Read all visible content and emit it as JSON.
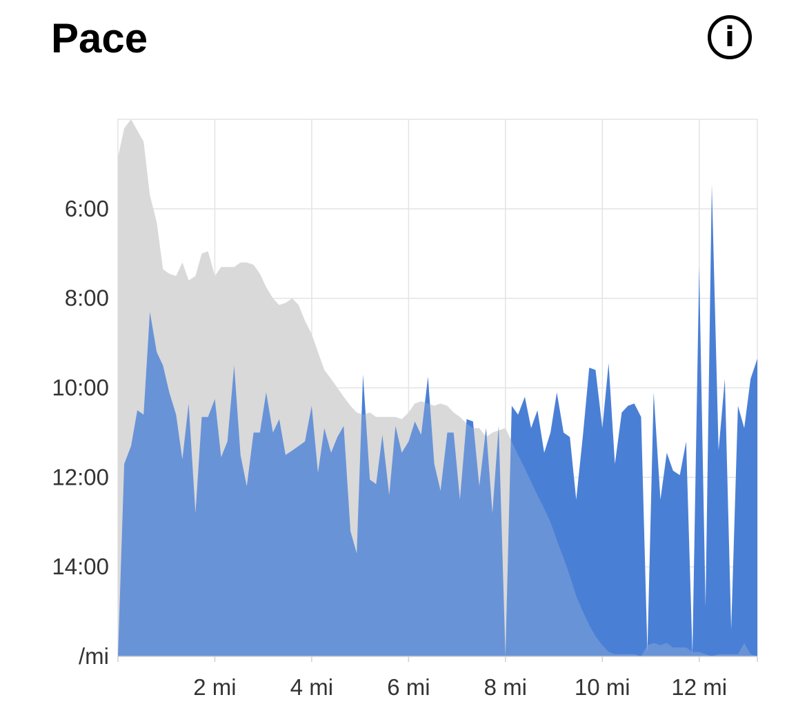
{
  "header": {
    "title": "Pace",
    "info_icon": "info-icon"
  },
  "chart_data": {
    "type": "area",
    "title": "Pace",
    "xlabel": "",
    "ylabel": "/mi",
    "y_unit": "/mi",
    "x_unit": "mi",
    "xlim": [
      0,
      13.2
    ],
    "ylim_min_per_mi": [
      4,
      16
    ],
    "y_inverted": true,
    "grid": true,
    "x_ticks": [
      {
        "value": 2,
        "label": "2 mi"
      },
      {
        "value": 4,
        "label": "4 mi"
      },
      {
        "value": 6,
        "label": "6 mi"
      },
      {
        "value": 8,
        "label": "8 mi"
      },
      {
        "value": 10,
        "label": "10 mi"
      },
      {
        "value": 12,
        "label": "12 mi"
      }
    ],
    "y_ticks": [
      {
        "value": 6,
        "label": "6:00"
      },
      {
        "value": 8,
        "label": "8:00"
      },
      {
        "value": 10,
        "label": "10:00"
      },
      {
        "value": 12,
        "label": "12:00"
      },
      {
        "value": 14,
        "label": "14:00"
      },
      {
        "value": 16,
        "label": "/mi"
      }
    ],
    "colors": {
      "pace": "#4a7fd6",
      "overlay": "#d9d9d9",
      "grid": "#e3e3e3"
    },
    "series": [
      {
        "values": [
          [
            0,
            16
          ],
          [
            0.13,
            11.7
          ],
          [
            0.27,
            11.3
          ],
          [
            0.4,
            10.5
          ],
          [
            0.53,
            10.6
          ],
          [
            0.66,
            8.3
          ],
          [
            0.8,
            9.2
          ],
          [
            0.93,
            9.5
          ],
          [
            1.06,
            10.1
          ],
          [
            1.2,
            10.6
          ],
          [
            1.33,
            11.6
          ],
          [
            1.46,
            10.35
          ],
          [
            1.6,
            12.8
          ],
          [
            1.73,
            10.65
          ],
          [
            1.86,
            10.65
          ],
          [
            2,
            10.25
          ],
          [
            2.13,
            11.55
          ],
          [
            2.26,
            11.2
          ],
          [
            2.4,
            9.5
          ],
          [
            2.53,
            11.5
          ],
          [
            2.66,
            12.2
          ],
          [
            2.8,
            11
          ],
          [
            2.93,
            11
          ],
          [
            3.06,
            10.1
          ],
          [
            3.2,
            11
          ],
          [
            3.33,
            10.7
          ],
          [
            3.46,
            11.5
          ],
          [
            3.6,
            11.4
          ],
          [
            3.73,
            11.3
          ],
          [
            3.86,
            11.2
          ],
          [
            4,
            10.4
          ],
          [
            4.13,
            11.9
          ],
          [
            4.26,
            10.9
          ],
          [
            4.4,
            11.45
          ],
          [
            4.53,
            11.1
          ],
          [
            4.66,
            10.85
          ],
          [
            4.8,
            13.2
          ],
          [
            4.93,
            13.7
          ],
          [
            5.06,
            9.7
          ],
          [
            5.2,
            12.05
          ],
          [
            5.33,
            12.15
          ],
          [
            5.46,
            11.05
          ],
          [
            5.6,
            12.4
          ],
          [
            5.73,
            10.85
          ],
          [
            5.86,
            11.45
          ],
          [
            6,
            11.2
          ],
          [
            6.13,
            10.75
          ],
          [
            6.26,
            11.05
          ],
          [
            6.4,
            9.75
          ],
          [
            6.53,
            11.7
          ],
          [
            6.66,
            12.3
          ],
          [
            6.8,
            11
          ],
          [
            6.93,
            11
          ],
          [
            7.06,
            12.5
          ],
          [
            7.2,
            10.7
          ],
          [
            7.33,
            10.75
          ],
          [
            7.46,
            12.2
          ],
          [
            7.6,
            10.9
          ],
          [
            7.73,
            12.8
          ],
          [
            7.86,
            10.85
          ],
          [
            8,
            16
          ],
          [
            8.13,
            10.4
          ],
          [
            8.26,
            10.6
          ],
          [
            8.4,
            10.2
          ],
          [
            8.53,
            10.9
          ],
          [
            8.66,
            10.5
          ],
          [
            8.8,
            11.45
          ],
          [
            8.93,
            11
          ],
          [
            9.06,
            10.1
          ],
          [
            9.2,
            11
          ],
          [
            9.33,
            11.1
          ],
          [
            9.46,
            12.5
          ],
          [
            9.6,
            11.05
          ],
          [
            9.73,
            9.55
          ],
          [
            9.86,
            9.6
          ],
          [
            10,
            10.9
          ],
          [
            10.13,
            9.45
          ],
          [
            10.26,
            11.7
          ],
          [
            10.4,
            10.55
          ],
          [
            10.53,
            10.4
          ],
          [
            10.66,
            10.35
          ],
          [
            10.8,
            10.65
          ],
          [
            10.93,
            15.9
          ],
          [
            11.06,
            10.1
          ],
          [
            11.2,
            12.5
          ],
          [
            11.33,
            11.45
          ],
          [
            11.46,
            11.85
          ],
          [
            11.6,
            11.95
          ],
          [
            11.73,
            11.2
          ],
          [
            11.86,
            15.95
          ],
          [
            12,
            7.3
          ],
          [
            12.13,
            14.9
          ],
          [
            12.26,
            5.45
          ],
          [
            12.4,
            11.4
          ],
          [
            12.53,
            9.8
          ],
          [
            12.66,
            15.4
          ],
          [
            12.8,
            10.4
          ],
          [
            12.93,
            10.9
          ],
          [
            13.06,
            9.8
          ],
          [
            13.2,
            9.35
          ]
        ]
      },
      {
        "values": [
          [
            0,
            4.85
          ],
          [
            0.13,
            4.2
          ],
          [
            0.27,
            4.0
          ],
          [
            0.4,
            4.25
          ],
          [
            0.53,
            4.5
          ],
          [
            0.66,
            5.7
          ],
          [
            0.8,
            6.3
          ],
          [
            0.93,
            7.35
          ],
          [
            1.06,
            7.45
          ],
          [
            1.2,
            7.5
          ],
          [
            1.33,
            7.2
          ],
          [
            1.46,
            7.6
          ],
          [
            1.6,
            7.5
          ],
          [
            1.73,
            7.0
          ],
          [
            1.86,
            6.95
          ],
          [
            2,
            7.5
          ],
          [
            2.13,
            7.3
          ],
          [
            2.26,
            7.3
          ],
          [
            2.4,
            7.3
          ],
          [
            2.53,
            7.2
          ],
          [
            2.66,
            7.2
          ],
          [
            2.8,
            7.25
          ],
          [
            2.93,
            7.45
          ],
          [
            3.06,
            7.75
          ],
          [
            3.2,
            8.0
          ],
          [
            3.33,
            8.15
          ],
          [
            3.46,
            8.1
          ],
          [
            3.6,
            8.0
          ],
          [
            3.73,
            8.15
          ],
          [
            3.86,
            8.5
          ],
          [
            4,
            8.8
          ],
          [
            4.13,
            9.2
          ],
          [
            4.26,
            9.6
          ],
          [
            4.4,
            9.8
          ],
          [
            4.53,
            10.0
          ],
          [
            4.66,
            10.2
          ],
          [
            4.8,
            10.4
          ],
          [
            4.93,
            10.55
          ],
          [
            5.06,
            10.6
          ],
          [
            5.2,
            10.55
          ],
          [
            5.33,
            10.65
          ],
          [
            5.46,
            10.65
          ],
          [
            5.6,
            10.65
          ],
          [
            5.73,
            10.65
          ],
          [
            5.86,
            10.7
          ],
          [
            6,
            10.55
          ],
          [
            6.13,
            10.35
          ],
          [
            6.26,
            10.3
          ],
          [
            6.4,
            10.35
          ],
          [
            6.53,
            10.4
          ],
          [
            6.66,
            10.35
          ],
          [
            6.8,
            10.4
          ],
          [
            6.93,
            10.55
          ],
          [
            7.06,
            10.65
          ],
          [
            7.2,
            10.8
          ],
          [
            7.33,
            10.9
          ],
          [
            7.46,
            10.9
          ],
          [
            7.6,
            11.1
          ],
          [
            7.73,
            11.0
          ],
          [
            7.86,
            10.95
          ],
          [
            8,
            10.9
          ],
          [
            8.13,
            11.2
          ],
          [
            8.26,
            11.5
          ],
          [
            8.4,
            11.8
          ],
          [
            8.53,
            12.1
          ],
          [
            8.66,
            12.4
          ],
          [
            8.8,
            12.7
          ],
          [
            8.93,
            13.0
          ],
          [
            9.06,
            13.4
          ],
          [
            9.2,
            13.8
          ],
          [
            9.33,
            14.2
          ],
          [
            9.46,
            14.65
          ],
          [
            9.6,
            15.0
          ],
          [
            9.73,
            15.3
          ],
          [
            9.86,
            15.55
          ],
          [
            10,
            15.75
          ],
          [
            10.13,
            15.9
          ],
          [
            10.26,
            15.95
          ],
          [
            10.4,
            15.95
          ],
          [
            10.53,
            15.95
          ],
          [
            10.66,
            15.95
          ],
          [
            10.8,
            16
          ],
          [
            10.93,
            15.75
          ],
          [
            11.06,
            15.7
          ],
          [
            11.2,
            15.75
          ],
          [
            11.33,
            15.7
          ],
          [
            11.46,
            15.8
          ],
          [
            11.6,
            15.8
          ],
          [
            11.73,
            15.8
          ],
          [
            11.86,
            15.9
          ],
          [
            12,
            15.9
          ],
          [
            12.13,
            15.95
          ],
          [
            12.26,
            16.0
          ],
          [
            12.4,
            15.95
          ],
          [
            12.53,
            15.95
          ],
          [
            12.66,
            15.95
          ],
          [
            12.8,
            15.95
          ],
          [
            12.93,
            15.7
          ],
          [
            13.06,
            15.95
          ],
          [
            13.2,
            16
          ]
        ]
      }
    ]
  }
}
